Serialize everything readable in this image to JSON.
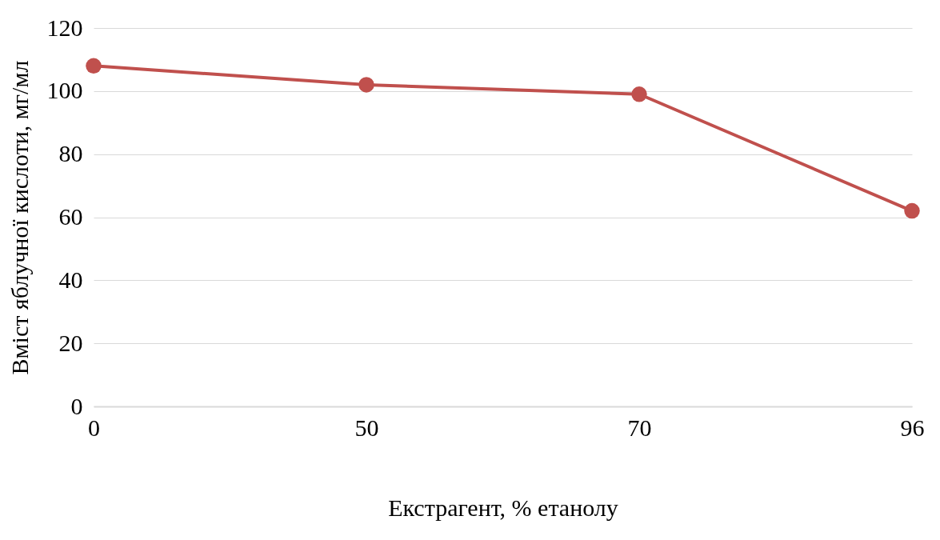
{
  "chart_data": {
    "type": "line",
    "xlabel": "Екстрагент, % етанолу",
    "ylabel": "Вміст яблучної кислоти, мг/мл",
    "categories": [
      "0",
      "50",
      "70",
      "96"
    ],
    "series": [
      {
        "color": "#c0504d",
        "values": [
          108,
          102,
          99,
          62
        ]
      }
    ],
    "ylim": [
      0,
      120
    ],
    "yticks": [
      0,
      20,
      40,
      60,
      80,
      100,
      120
    ],
    "grid": "y",
    "marker": "circle"
  }
}
